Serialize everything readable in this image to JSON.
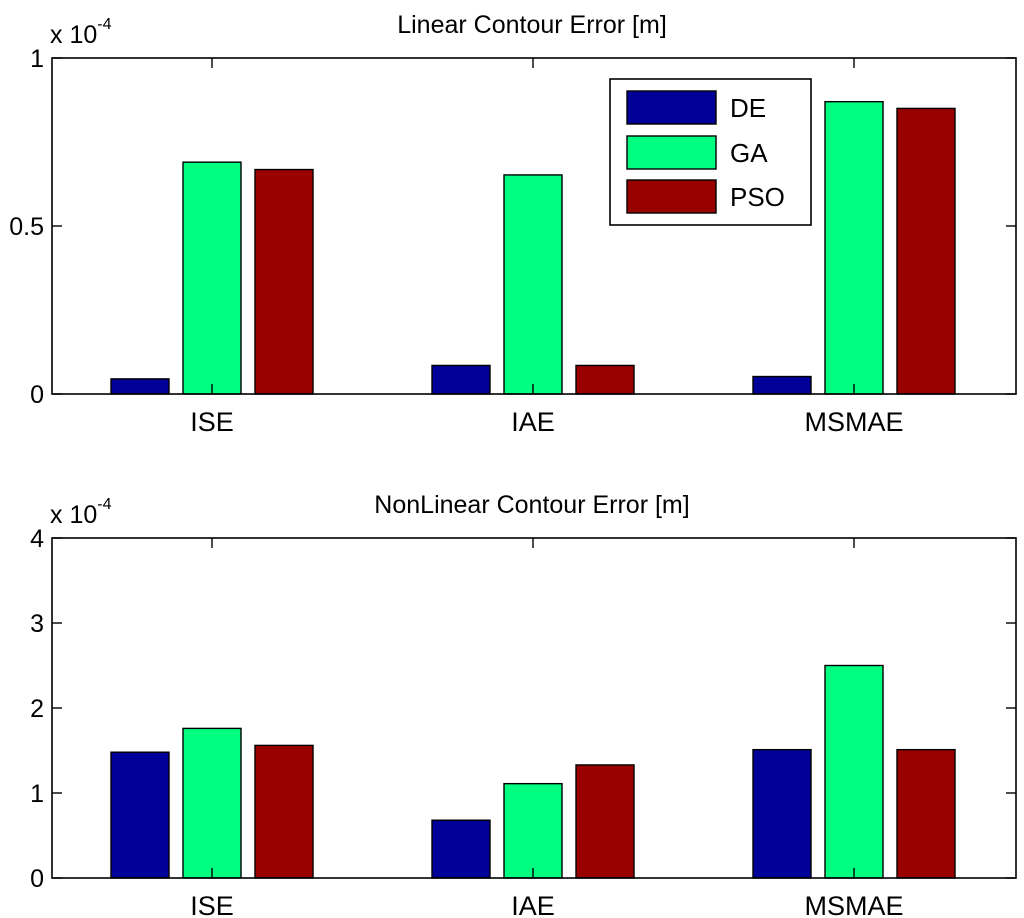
{
  "colors": {
    "DE": "#000099",
    "GA": "#00ff80",
    "PSO": "#990000"
  },
  "legend": {
    "entries": [
      "DE",
      "GA",
      "PSO"
    ]
  },
  "chart_data": [
    {
      "type": "bar",
      "title": "Linear Contour Error [m]",
      "multiplier_base": "x 10",
      "multiplier_exponent": "-4",
      "categories": [
        "ISE",
        "IAE",
        "MSMAE"
      ],
      "series": [
        {
          "name": "DE",
          "values": [
            0.045,
            0.085,
            0.052
          ]
        },
        {
          "name": "GA",
          "values": [
            0.69,
            0.652,
            0.87
          ]
        },
        {
          "name": "PSO",
          "values": [
            0.668,
            0.085,
            0.85
          ]
        }
      ],
      "ylim": [
        0,
        1
      ],
      "yticks": [
        0,
        0.5,
        1
      ],
      "ytick_labels": [
        "0",
        "0.5",
        "1"
      ],
      "legend_position": "top-right"
    },
    {
      "type": "bar",
      "title": "NonLinear Contour Error [m]",
      "multiplier_base": "x 10",
      "multiplier_exponent": "-4",
      "categories": [
        "ISE",
        "IAE",
        "MSMAE"
      ],
      "series": [
        {
          "name": "DE",
          "values": [
            1.48,
            0.68,
            1.51
          ]
        },
        {
          "name": "GA",
          "values": [
            1.76,
            1.11,
            2.5
          ]
        },
        {
          "name": "PSO",
          "values": [
            1.56,
            1.33,
            1.51
          ]
        }
      ],
      "ylim": [
        0,
        4
      ],
      "yticks": [
        0,
        1,
        2,
        3,
        4
      ],
      "ytick_labels": [
        "0",
        "1",
        "2",
        "3",
        "4"
      ]
    }
  ]
}
